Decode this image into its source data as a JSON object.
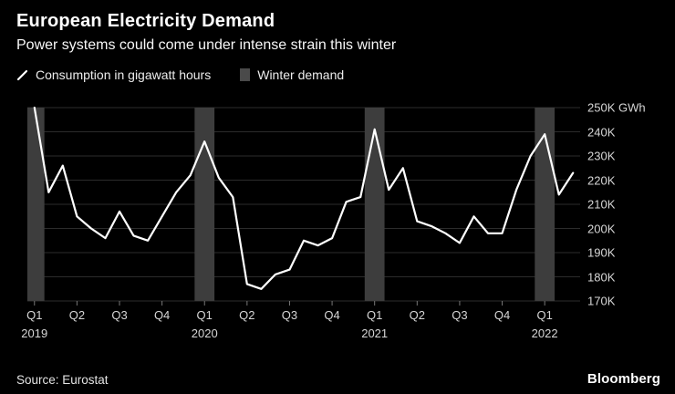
{
  "header": {
    "title": "European Electricity Demand",
    "subtitle": "Power systems could come under intense strain this winter"
  },
  "legend": [
    {
      "label": "Consumption in gigawatt hours",
      "swatch": "white-diagonal-line"
    },
    {
      "label": "Winter demand",
      "swatch": "gray-band"
    }
  ],
  "footer": {
    "source": "Source: Eurostat",
    "brand": "Bloomberg"
  },
  "colors": {
    "background": "#000000",
    "line": "#ffffff",
    "winter_band": "#3d3d3d",
    "grid": "#2c2c2c",
    "axis_text": "#d6d6d6",
    "tick": "#777777"
  },
  "chart_data": {
    "type": "line",
    "title": "European Electricity Demand",
    "unit": "K GWh",
    "frequency": "monthly",
    "start": "2019-01",
    "xlim_months": [
      -0.5,
      38.5
    ],
    "ylim": [
      170,
      250
    ],
    "grid": true,
    "legend_position": "top-left",
    "series": [
      {
        "name": "Consumption in gigawatt hours",
        "values": [
          250,
          215,
          226,
          205,
          200,
          196,
          207,
          197,
          195,
          205,
          215,
          222,
          236,
          221,
          213,
          177,
          175,
          181,
          183,
          195,
          193,
          196,
          211,
          213,
          241,
          216,
          225,
          203,
          201,
          198,
          194,
          205,
          198,
          198,
          216,
          230,
          239,
          214,
          223
        ]
      }
    ],
    "winter_band_month_ranges": [
      [
        -0.5,
        0.7
      ],
      [
        11.3,
        12.7
      ],
      [
        23.3,
        24.7
      ],
      [
        35.3,
        36.7
      ]
    ],
    "y_ticks": [
      {
        "value": 250,
        "label": "250K GWh"
      },
      {
        "value": 240,
        "label": "240K"
      },
      {
        "value": 230,
        "label": "230K"
      },
      {
        "value": 220,
        "label": "220K"
      },
      {
        "value": 210,
        "label": "210K"
      },
      {
        "value": 200,
        "label": "200K"
      },
      {
        "value": 190,
        "label": "190K"
      },
      {
        "value": 180,
        "label": "180K"
      },
      {
        "value": 170,
        "label": "170K"
      }
    ],
    "x_ticks": [
      {
        "month": 0,
        "label": "Q1",
        "year": "2019"
      },
      {
        "month": 3,
        "label": "Q2"
      },
      {
        "month": 6,
        "label": "Q3"
      },
      {
        "month": 9,
        "label": "Q4"
      },
      {
        "month": 12,
        "label": "Q1",
        "year": "2020"
      },
      {
        "month": 15,
        "label": "Q2"
      },
      {
        "month": 18,
        "label": "Q3"
      },
      {
        "month": 21,
        "label": "Q4"
      },
      {
        "month": 24,
        "label": "Q1",
        "year": "2021"
      },
      {
        "month": 27,
        "label": "Q2"
      },
      {
        "month": 30,
        "label": "Q3"
      },
      {
        "month": 33,
        "label": "Q4"
      },
      {
        "month": 36,
        "label": "Q1",
        "year": "2022"
      }
    ]
  }
}
